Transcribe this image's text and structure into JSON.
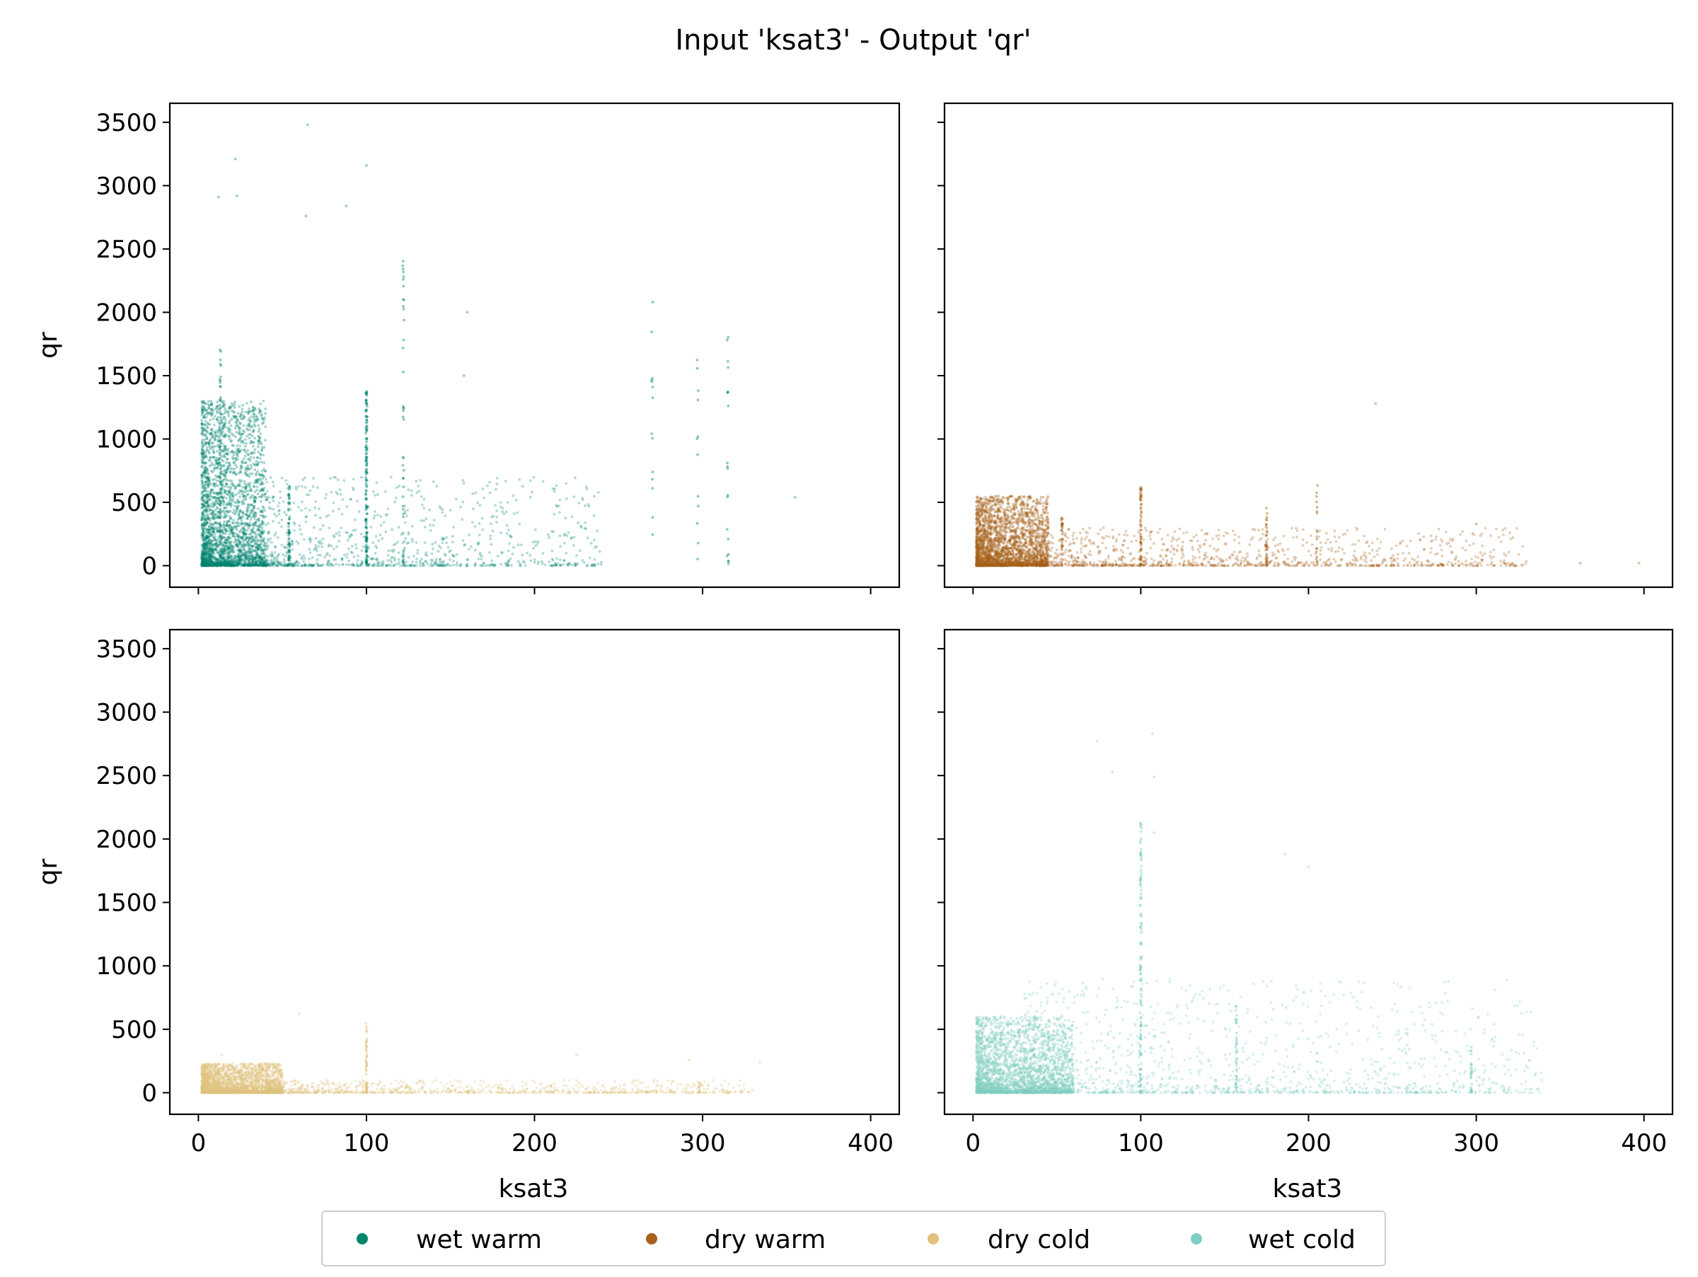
{
  "figure": {
    "title": "Input 'ksat3' - Output 'qr'",
    "xlabel": "ksat3",
    "ylabel": "qr"
  },
  "legend": {
    "placement": "bottom-center",
    "items": [
      {
        "label": "wet warm",
        "color": "#01856f"
      },
      {
        "label": "dry warm",
        "color": "#a6611a"
      },
      {
        "label": "dry cold",
        "color": "#dfc27d"
      },
      {
        "label": "wet cold",
        "color": "#80cdc1"
      }
    ]
  },
  "chart_data": [
    {
      "type": "scatter",
      "series": [
        {
          "name": "wet warm",
          "color": "#01856f"
        }
      ],
      "xlim": [
        -17,
        417
      ],
      "ylim": [
        -170,
        3650
      ],
      "xticks": [
        0,
        100,
        200,
        300,
        400
      ],
      "yticks": [
        0,
        500,
        1000,
        1500,
        2000,
        2500,
        3000,
        3500
      ],
      "xticklabels": [],
      "yticklabels": [
        "0",
        "500",
        "1000",
        "1500",
        "2000",
        "2500",
        "3000",
        "3500"
      ],
      "xlabel": "",
      "ylabel": "qr",
      "grid": false,
      "points_cluster": {
        "count": 2600,
        "x_range": [
          2,
          40
        ],
        "y_range": [
          0,
          1300
        ]
      },
      "points_spread": {
        "count": 900,
        "x_range": [
          40,
          240
        ],
        "y_range": [
          0,
          700
        ]
      },
      "vertical_bands": [
        {
          "x": 100,
          "y_max": 1380,
          "count": 140
        },
        {
          "x": 54,
          "y_max": 650,
          "count": 60
        },
        {
          "x": 122,
          "y_max": 2500,
          "count": 45
        },
        {
          "x": 13,
          "y_max": 1730,
          "count": 70
        },
        {
          "x": 270,
          "y_max": 2180,
          "count": 14
        },
        {
          "x": 315,
          "y_max": 1890,
          "count": 20
        },
        {
          "x": 297,
          "y_max": 2000,
          "count": 12
        }
      ],
      "outliers": [
        [
          65,
          3480
        ],
        [
          22,
          3210
        ],
        [
          100,
          3160
        ],
        [
          12,
          2910
        ],
        [
          23,
          2920
        ],
        [
          88,
          2840
        ],
        [
          64,
          2760
        ],
        [
          355,
          540
        ],
        [
          160,
          2000
        ],
        [
          158,
          1500
        ]
      ]
    },
    {
      "type": "scatter",
      "series": [
        {
          "name": "dry warm",
          "color": "#a6611a"
        }
      ],
      "xlim": [
        -17,
        417
      ],
      "ylim": [
        -170,
        3650
      ],
      "xticks": [
        0,
        100,
        200,
        300,
        400
      ],
      "yticks": [
        0,
        500,
        1000,
        1500,
        2000,
        2500,
        3000,
        3500
      ],
      "xticklabels": [],
      "yticklabels": [],
      "xlabel": "",
      "ylabel": "",
      "grid": false,
      "points_cluster": {
        "count": 2600,
        "x_range": [
          2,
          45
        ],
        "y_range": [
          0,
          550
        ]
      },
      "points_spread": {
        "count": 1100,
        "x_range": [
          40,
          330
        ],
        "y_range": [
          0,
          300
        ]
      },
      "vertical_bands": [
        {
          "x": 100,
          "y_max": 620,
          "count": 60
        },
        {
          "x": 175,
          "y_max": 460,
          "count": 30
        },
        {
          "x": 205,
          "y_max": 680,
          "count": 18
        },
        {
          "x": 53,
          "y_max": 420,
          "count": 30
        }
      ],
      "outliers": [
        [
          240,
          1280
        ],
        [
          362,
          20
        ],
        [
          397,
          20
        ],
        [
          300,
          330
        ],
        [
          5,
          100
        ]
      ]
    },
    {
      "type": "scatter",
      "series": [
        {
          "name": "dry cold",
          "color": "#dfc27d"
        }
      ],
      "xlim": [
        -17,
        417
      ],
      "ylim": [
        -170,
        3650
      ],
      "xticks": [
        0,
        100,
        200,
        300,
        400
      ],
      "yticks": [
        0,
        500,
        1000,
        1500,
        2000,
        2500,
        3000,
        3500
      ],
      "xticklabels": [
        "0",
        "100",
        "200",
        "300",
        "400"
      ],
      "yticklabels": [
        "0",
        "500",
        "1000",
        "1500",
        "2000",
        "2500",
        "3000",
        "3500"
      ],
      "xlabel": "ksat3",
      "ylabel": "qr",
      "grid": false,
      "points_cluster": {
        "count": 2200,
        "x_range": [
          2,
          50
        ],
        "y_range": [
          0,
          230
        ]
      },
      "points_spread": {
        "count": 900,
        "x_range": [
          40,
          330
        ],
        "y_range": [
          0,
          100
        ]
      },
      "vertical_bands": [
        {
          "x": 100,
          "y_max": 550,
          "count": 50
        },
        {
          "x": 298,
          "y_max": 80,
          "count": 10
        }
      ],
      "outliers": [
        [
          60,
          620
        ],
        [
          225,
          300
        ],
        [
          292,
          260
        ],
        [
          334,
          240
        ],
        [
          14,
          300
        ]
      ]
    },
    {
      "type": "scatter",
      "series": [
        {
          "name": "wet cold",
          "color": "#80cdc1"
        }
      ],
      "xlim": [
        -17,
        417
      ],
      "ylim": [
        -170,
        3650
      ],
      "xticks": [
        0,
        100,
        200,
        300,
        400
      ],
      "yticks": [
        0,
        500,
        1000,
        1500,
        2000,
        2500,
        3000,
        3500
      ],
      "xticklabels": [
        "0",
        "100",
        "200",
        "300",
        "400"
      ],
      "yticklabels": [],
      "xlabel": "ksat3",
      "ylabel": "",
      "grid": false,
      "points_cluster": {
        "count": 2600,
        "x_range": [
          2,
          60
        ],
        "y_range": [
          0,
          600
        ]
      },
      "points_spread": {
        "count": 1400,
        "x_range": [
          30,
          340
        ],
        "y_range": [
          0,
          900
        ]
      },
      "vertical_bands": [
        {
          "x": 100,
          "y_max": 2140,
          "count": 120
        },
        {
          "x": 157,
          "y_max": 700,
          "count": 40
        },
        {
          "x": 297,
          "y_max": 360,
          "count": 30
        }
      ],
      "outliers": [
        [
          74,
          2770
        ],
        [
          107,
          2830
        ],
        [
          108,
          2490
        ],
        [
          83,
          2530
        ],
        [
          186,
          1880
        ],
        [
          200,
          1780
        ],
        [
          108,
          2050
        ],
        [
          335,
          140
        ]
      ]
    }
  ]
}
